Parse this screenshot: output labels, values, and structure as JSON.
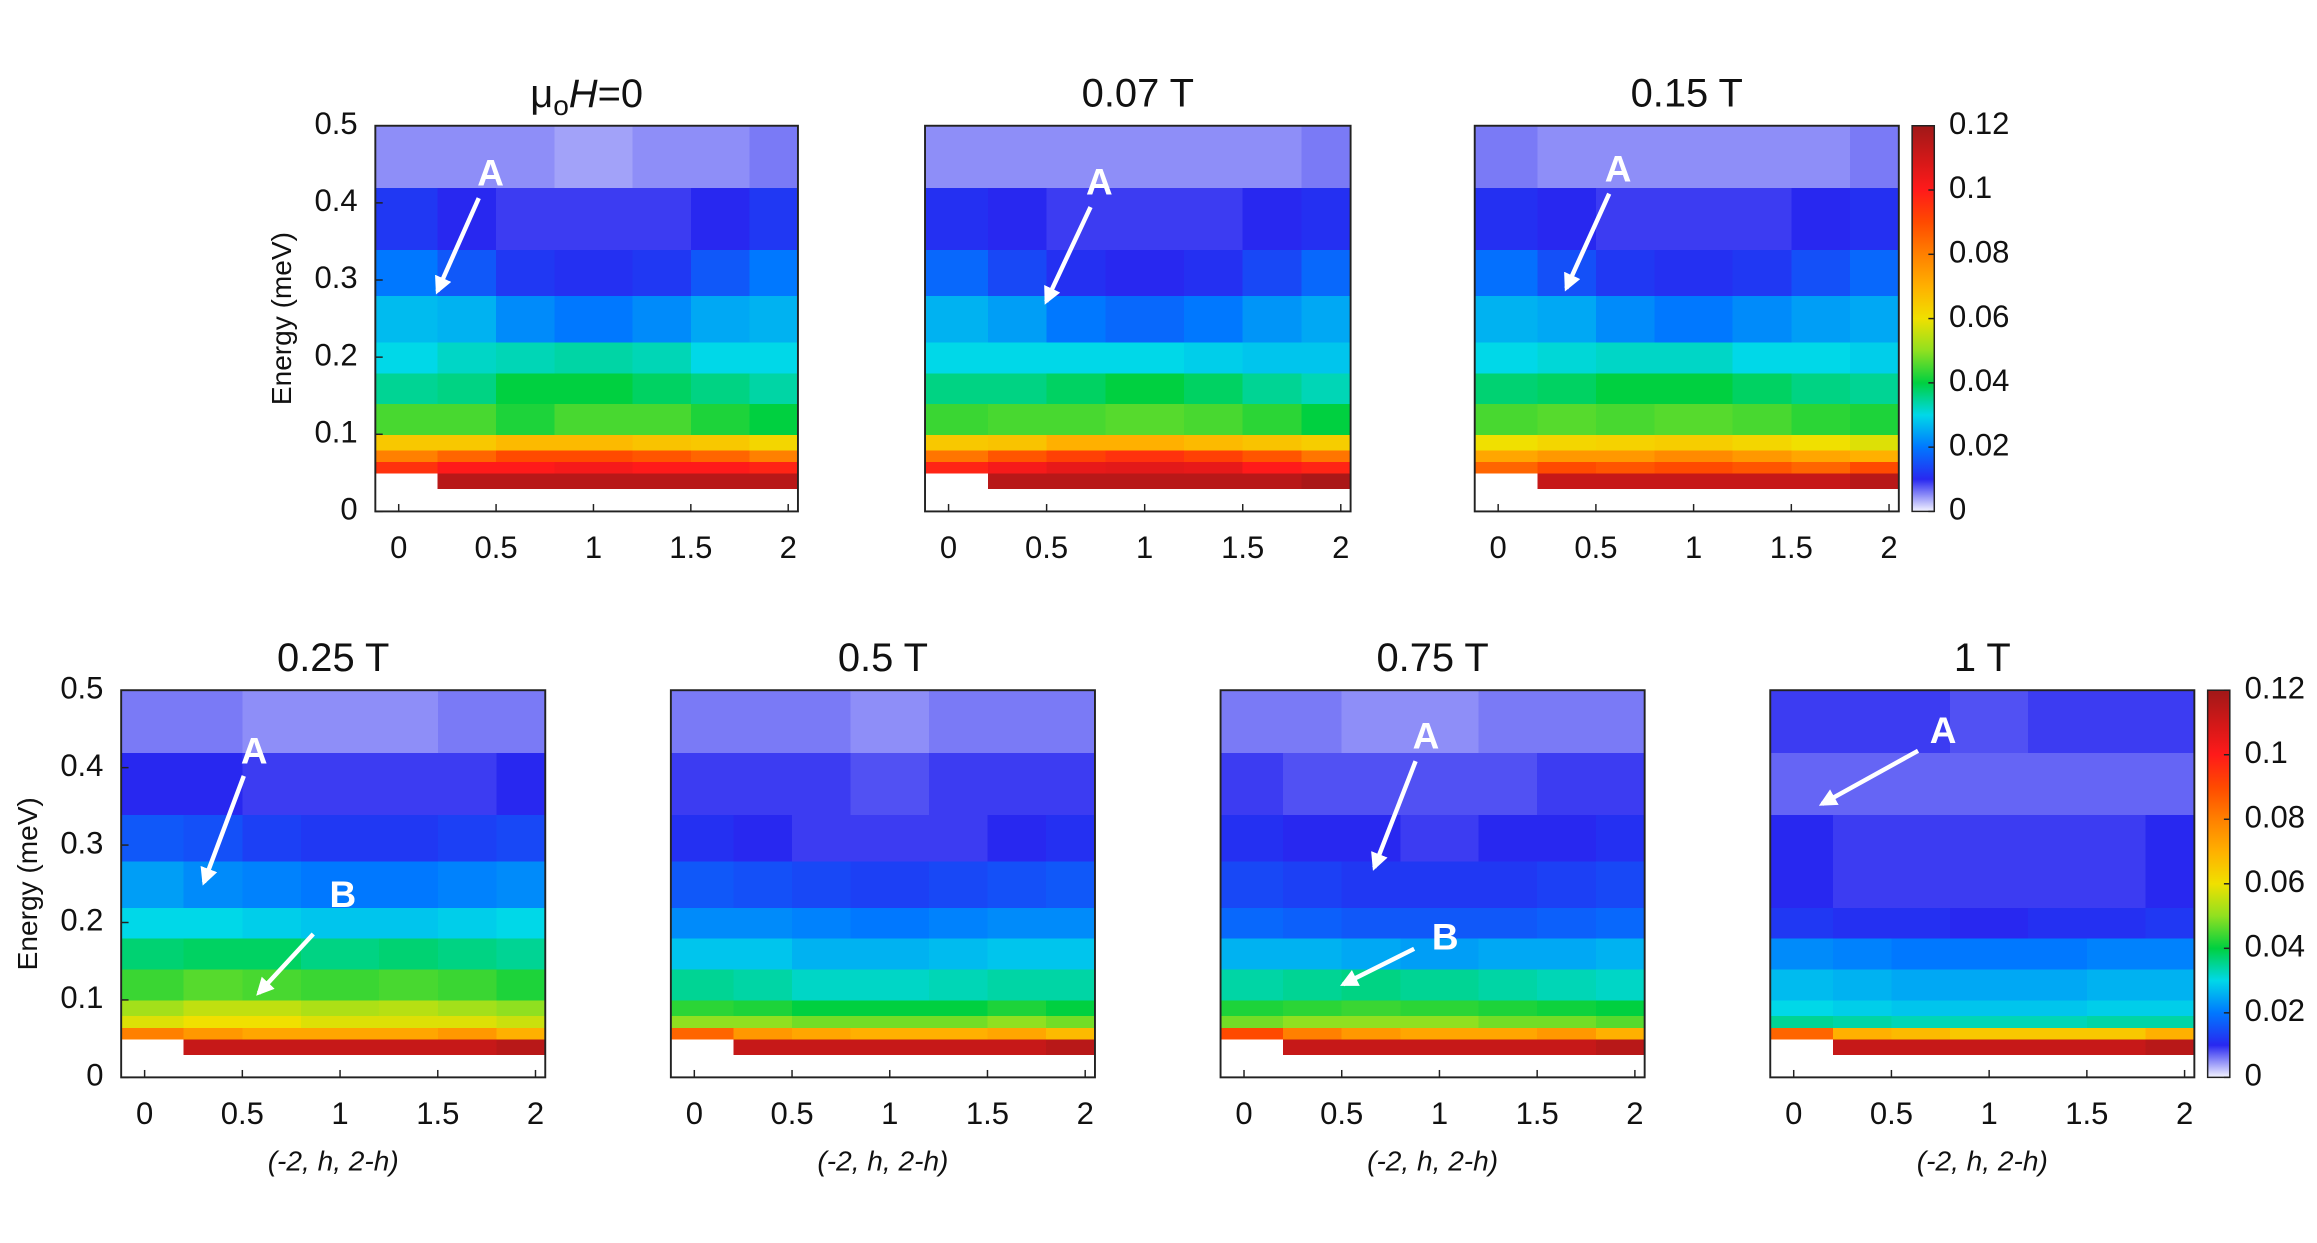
{
  "colormap": [
    "#f4f4ff",
    "#2828f0",
    "#0078ff",
    "#00d8e8",
    "#00d040",
    "#90e020",
    "#f0e000",
    "#ffb000",
    "#ff8000",
    "#ff4a00",
    "#ff1a1a",
    "#d01818",
    "#a01818"
  ],
  "zlim": [
    0,
    0.12
  ],
  "chart_data": [
    {
      "type": "heatmap",
      "title_parts": [
        "μ",
        "o",
        "H",
        "=0"
      ],
      "ylabel": "Energy (meV)",
      "annotations": [
        "A"
      ],
      "xlim": [
        -0.12,
        2.05
      ],
      "ylim": [
        0,
        0.5
      ],
      "xticks": [
        0,
        0.5,
        1,
        1.5,
        2
      ],
      "yticks": [
        0,
        0.1,
        0.2,
        0.3,
        0.4,
        0.5
      ],
      "x_edges": [
        -0.12,
        0.2,
        0.5,
        0.8,
        1.2,
        1.5,
        1.8,
        2.05
      ],
      "y_edges": [
        0.03,
        0.05,
        0.065,
        0.08,
        0.1,
        0.14,
        0.18,
        0.22,
        0.28,
        0.34,
        0.42,
        0.5
      ],
      "values": [
        [
          null,
          0.115,
          0.115,
          0.115,
          0.115,
          0.115,
          0.115
        ],
        [
          0.095,
          0.1,
          0.1,
          0.102,
          0.1,
          0.1,
          0.098
        ],
        [
          0.08,
          0.085,
          0.09,
          0.09,
          0.088,
          0.085,
          0.08
        ],
        [
          0.065,
          0.065,
          0.068,
          0.068,
          0.066,
          0.065,
          0.062
        ],
        [
          0.045,
          0.045,
          0.042,
          0.045,
          0.045,
          0.042,
          0.04
        ],
        [
          0.035,
          0.036,
          0.04,
          0.04,
          0.038,
          0.036,
          0.034
        ],
        [
          0.03,
          0.032,
          0.033,
          0.034,
          0.033,
          0.03,
          0.03
        ],
        [
          0.027,
          0.026,
          0.022,
          0.02,
          0.022,
          0.025,
          0.026
        ],
        [
          0.02,
          0.016,
          0.012,
          0.011,
          0.012,
          0.016,
          0.02
        ],
        [
          0.012,
          0.01,
          0.009,
          0.009,
          0.009,
          0.01,
          0.012
        ],
        [
          0.005,
          0.005,
          0.005,
          0.004,
          0.005,
          0.005,
          0.006
        ]
      ]
    },
    {
      "type": "heatmap",
      "title": "0.07 T",
      "annotations": [
        "A"
      ],
      "xlim": [
        -0.12,
        2.05
      ],
      "ylim": [
        0,
        0.5
      ],
      "xticks": [
        0,
        0.5,
        1,
        1.5,
        2
      ],
      "x_edges": [
        -0.12,
        0.2,
        0.5,
        0.8,
        1.2,
        1.5,
        1.8,
        2.05
      ],
      "y_edges": [
        0.03,
        0.05,
        0.065,
        0.08,
        0.1,
        0.14,
        0.18,
        0.22,
        0.28,
        0.34,
        0.42,
        0.5
      ],
      "values": [
        [
          null,
          0.115,
          0.115,
          0.115,
          0.115,
          0.115,
          0.118
        ],
        [
          0.098,
          0.102,
          0.105,
          0.106,
          0.105,
          0.1,
          0.098
        ],
        [
          0.082,
          0.088,
          0.092,
          0.095,
          0.092,
          0.088,
          0.082
        ],
        [
          0.065,
          0.066,
          0.07,
          0.07,
          0.068,
          0.066,
          0.064
        ],
        [
          0.044,
          0.045,
          0.045,
          0.046,
          0.045,
          0.043,
          0.04
        ],
        [
          0.036,
          0.036,
          0.038,
          0.04,
          0.038,
          0.035,
          0.033
        ],
        [
          0.03,
          0.03,
          0.03,
          0.03,
          0.029,
          0.028,
          0.028
        ],
        [
          0.026,
          0.024,
          0.02,
          0.018,
          0.02,
          0.023,
          0.025
        ],
        [
          0.018,
          0.014,
          0.011,
          0.01,
          0.011,
          0.014,
          0.018
        ],
        [
          0.011,
          0.01,
          0.009,
          0.009,
          0.009,
          0.01,
          0.011
        ],
        [
          0.005,
          0.005,
          0.005,
          0.005,
          0.005,
          0.005,
          0.006
        ]
      ]
    },
    {
      "type": "heatmap",
      "title": "0.15 T",
      "annotations": [
        "A"
      ],
      "zticks": [
        0,
        0.02,
        0.04,
        0.06,
        0.08,
        0.1,
        0.12
      ],
      "xlim": [
        -0.12,
        2.05
      ],
      "ylim": [
        0,
        0.5
      ],
      "xticks": [
        0,
        0.5,
        1,
        1.5,
        2
      ],
      "x_edges": [
        -0.12,
        0.2,
        0.5,
        0.8,
        1.2,
        1.5,
        1.8,
        2.05
      ],
      "y_edges": [
        0.03,
        0.05,
        0.065,
        0.08,
        0.1,
        0.14,
        0.18,
        0.22,
        0.28,
        0.34,
        0.42,
        0.5
      ],
      "values": [
        [
          null,
          0.112,
          0.112,
          0.112,
          0.112,
          0.112,
          0.115
        ],
        [
          0.085,
          0.09,
          0.088,
          0.09,
          0.088,
          0.085,
          0.09
        ],
        [
          0.072,
          0.075,
          0.075,
          0.078,
          0.075,
          0.072,
          0.07
        ],
        [
          0.06,
          0.062,
          0.063,
          0.064,
          0.062,
          0.06,
          0.058
        ],
        [
          0.045,
          0.046,
          0.045,
          0.046,
          0.045,
          0.043,
          0.042
        ],
        [
          0.037,
          0.038,
          0.04,
          0.04,
          0.038,
          0.036,
          0.035
        ],
        [
          0.03,
          0.031,
          0.032,
          0.032,
          0.03,
          0.03,
          0.029
        ],
        [
          0.026,
          0.025,
          0.022,
          0.02,
          0.022,
          0.024,
          0.025
        ],
        [
          0.019,
          0.015,
          0.012,
          0.011,
          0.012,
          0.015,
          0.018
        ],
        [
          0.011,
          0.01,
          0.009,
          0.009,
          0.009,
          0.01,
          0.011
        ],
        [
          0.006,
          0.005,
          0.005,
          0.005,
          0.005,
          0.005,
          0.006
        ]
      ]
    },
    {
      "type": "heatmap",
      "title": "0.25 T",
      "ylabel": "Energy (meV)",
      "xlabel": "(-2, h, 2-h)",
      "annotations": [
        "A",
        "B"
      ],
      "xlim": [
        -0.12,
        2.05
      ],
      "ylim": [
        0,
        0.5
      ],
      "xticks": [
        0,
        0.5,
        1,
        1.5,
        2
      ],
      "yticks": [
        0,
        0.1,
        0.2,
        0.3,
        0.4,
        0.5
      ],
      "x_edges": [
        -0.12,
        0.2,
        0.5,
        0.8,
        1.2,
        1.5,
        1.8,
        2.05
      ],
      "y_edges": [
        0.03,
        0.05,
        0.065,
        0.08,
        0.1,
        0.14,
        0.18,
        0.22,
        0.28,
        0.34,
        0.42,
        0.5
      ],
      "values": [
        [
          null,
          0.112,
          0.112,
          0.112,
          0.112,
          0.112,
          0.115
        ],
        [
          0.08,
          0.075,
          0.072,
          0.072,
          0.072,
          0.075,
          0.07
        ],
        [
          0.058,
          0.06,
          0.06,
          0.058,
          0.058,
          0.058,
          0.056
        ],
        [
          0.052,
          0.055,
          0.055,
          0.053,
          0.054,
          0.052,
          0.05
        ],
        [
          0.044,
          0.046,
          0.045,
          0.044,
          0.045,
          0.044,
          0.042
        ],
        [
          0.037,
          0.038,
          0.038,
          0.036,
          0.037,
          0.036,
          0.035
        ],
        [
          0.03,
          0.03,
          0.029,
          0.028,
          0.028,
          0.029,
          0.03
        ],
        [
          0.024,
          0.022,
          0.021,
          0.02,
          0.02,
          0.021,
          0.022
        ],
        [
          0.016,
          0.015,
          0.013,
          0.012,
          0.012,
          0.013,
          0.014
        ],
        [
          0.01,
          0.01,
          0.009,
          0.009,
          0.009,
          0.009,
          0.01
        ],
        [
          0.006,
          0.006,
          0.005,
          0.005,
          0.005,
          0.006,
          0.006
        ]
      ]
    },
    {
      "type": "heatmap",
      "title": "0.5 T",
      "xlabel": "(-2, h, 2-h)",
      "xlim": [
        -0.12,
        2.05
      ],
      "ylim": [
        0,
        0.5
      ],
      "xticks": [
        0,
        0.5,
        1,
        1.5,
        2
      ],
      "x_edges": [
        -0.12,
        0.2,
        0.5,
        0.8,
        1.2,
        1.5,
        1.8,
        2.05
      ],
      "y_edges": [
        0.03,
        0.05,
        0.065,
        0.08,
        0.1,
        0.14,
        0.18,
        0.22,
        0.28,
        0.34,
        0.42,
        0.5
      ],
      "values": [
        [
          null,
          0.112,
          0.112,
          0.112,
          0.112,
          0.112,
          0.115
        ],
        [
          0.085,
          0.075,
          0.072,
          0.07,
          0.07,
          0.072,
          0.068
        ],
        [
          0.05,
          0.05,
          0.048,
          0.048,
          0.048,
          0.05,
          0.048
        ],
        [
          0.043,
          0.042,
          0.04,
          0.04,
          0.04,
          0.042,
          0.04
        ],
        [
          0.035,
          0.034,
          0.032,
          0.032,
          0.033,
          0.034,
          0.034
        ],
        [
          0.028,
          0.028,
          0.026,
          0.026,
          0.027,
          0.028,
          0.028
        ],
        [
          0.022,
          0.022,
          0.021,
          0.02,
          0.021,
          0.022,
          0.022
        ],
        [
          0.016,
          0.015,
          0.014,
          0.013,
          0.014,
          0.015,
          0.016
        ],
        [
          0.011,
          0.01,
          0.009,
          0.009,
          0.009,
          0.01,
          0.011
        ],
        [
          0.009,
          0.009,
          0.009,
          0.008,
          0.009,
          0.009,
          0.009
        ],
        [
          0.006,
          0.006,
          0.006,
          0.005,
          0.006,
          0.006,
          0.006
        ]
      ]
    },
    {
      "type": "heatmap",
      "title": "0.75 T",
      "xlabel": "(-2, h, 2-h)",
      "annotations": [
        "A",
        "B"
      ],
      "xlim": [
        -0.12,
        2.05
      ],
      "ylim": [
        0,
        0.5
      ],
      "xticks": [
        0,
        0.5,
        1,
        1.5,
        2
      ],
      "x_edges": [
        -0.12,
        0.2,
        0.5,
        0.8,
        1.2,
        1.5,
        1.8,
        2.05
      ],
      "y_edges": [
        0.03,
        0.05,
        0.065,
        0.08,
        0.1,
        0.14,
        0.18,
        0.22,
        0.28,
        0.34,
        0.42,
        0.5
      ],
      "values": [
        [
          null,
          0.112,
          0.112,
          0.112,
          0.112,
          0.112,
          0.115
        ],
        [
          0.09,
          0.08,
          0.075,
          0.072,
          0.072,
          0.075,
          0.07
        ],
        [
          0.048,
          0.05,
          0.05,
          0.05,
          0.048,
          0.048,
          0.046
        ],
        [
          0.042,
          0.043,
          0.044,
          0.043,
          0.042,
          0.041,
          0.04
        ],
        [
          0.034,
          0.035,
          0.036,
          0.035,
          0.034,
          0.033,
          0.032
        ],
        [
          0.026,
          0.026,
          0.025,
          0.024,
          0.025,
          0.025,
          0.026
        ],
        [
          0.018,
          0.017,
          0.016,
          0.016,
          0.016,
          0.017,
          0.018
        ],
        [
          0.014,
          0.013,
          0.012,
          0.012,
          0.012,
          0.013,
          0.014
        ],
        [
          0.011,
          0.01,
          0.01,
          0.009,
          0.01,
          0.01,
          0.011
        ],
        [
          0.009,
          0.008,
          0.008,
          0.008,
          0.008,
          0.009,
          0.009
        ],
        [
          0.006,
          0.006,
          0.005,
          0.005,
          0.006,
          0.006,
          0.006
        ]
      ]
    },
    {
      "type": "heatmap",
      "title": "1 T",
      "xlabel": "(-2, h, 2-h)",
      "annotations": [
        "A"
      ],
      "zticks": [
        0,
        0.02,
        0.04,
        0.06,
        0.08,
        0.1,
        0.12
      ],
      "xlim": [
        -0.12,
        2.05
      ],
      "ylim": [
        0,
        0.5
      ],
      "xticks": [
        0,
        0.5,
        1,
        1.5,
        2
      ],
      "x_edges": [
        -0.12,
        0.2,
        0.5,
        0.8,
        1.2,
        1.5,
        1.8,
        2.05
      ],
      "y_edges": [
        0.03,
        0.05,
        0.065,
        0.08,
        0.1,
        0.14,
        0.18,
        0.22,
        0.28,
        0.34,
        0.42,
        0.5
      ],
      "values": [
        [
          null,
          0.112,
          0.112,
          0.112,
          0.112,
          0.112,
          0.115
        ],
        [
          0.085,
          0.07,
          0.068,
          0.065,
          0.065,
          0.065,
          0.07
        ],
        [
          0.035,
          0.034,
          0.033,
          0.033,
          0.033,
          0.034,
          0.034
        ],
        [
          0.03,
          0.029,
          0.028,
          0.028,
          0.028,
          0.029,
          0.029
        ],
        [
          0.027,
          0.026,
          0.025,
          0.025,
          0.025,
          0.026,
          0.026
        ],
        [
          0.022,
          0.021,
          0.02,
          0.02,
          0.02,
          0.021,
          0.021
        ],
        [
          0.012,
          0.011,
          0.011,
          0.01,
          0.011,
          0.011,
          0.012
        ],
        [
          0.01,
          0.009,
          0.009,
          0.009,
          0.009,
          0.009,
          0.01
        ],
        [
          0.01,
          0.009,
          0.009,
          0.009,
          0.009,
          0.009,
          0.01
        ],
        [
          0.007,
          0.007,
          0.007,
          0.007,
          0.007,
          0.007,
          0.007
        ],
        [
          0.009,
          0.009,
          0.009,
          0.008,
          0.009,
          0.009,
          0.009
        ]
      ]
    }
  ]
}
